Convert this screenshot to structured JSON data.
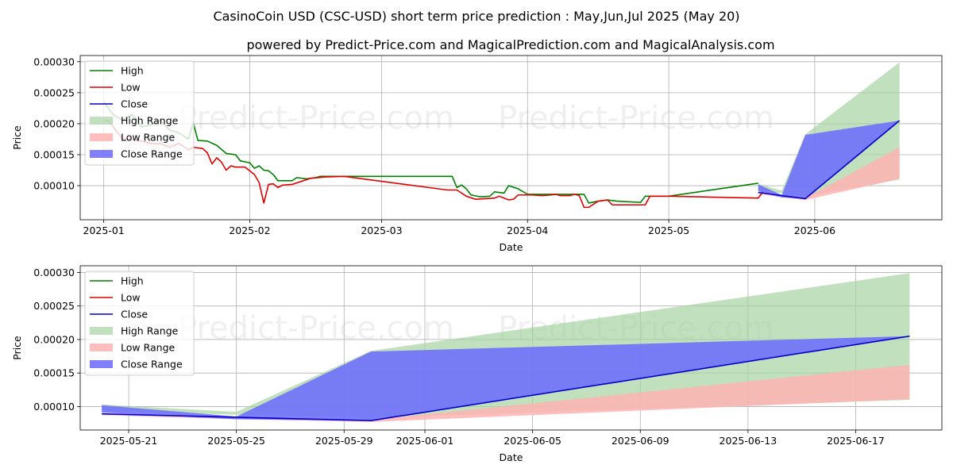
{
  "title": "CasinoCoin USD (CSC-USD) short term price prediction : May,Jun,Jul 2025 (May 20)",
  "subtitle": "powered by Predict-Price.com and MagicalPrediction.com and MagicalAnalysis.com",
  "watermark": "Predict-Price.com",
  "colors": {
    "high": "#008000",
    "low": "#e00000",
    "close": "#0000cc",
    "high_range": "#a7d3a1",
    "low_range": "#ffb3b3",
    "close_range": "#6a6aff"
  },
  "legend": {
    "high": "High",
    "low": "Low",
    "close": "Close",
    "high_range": "High Range",
    "low_range": "Low Range",
    "close_range": "Close Range"
  },
  "chart_data": [
    {
      "type": "line",
      "name": "overview",
      "xlabel": "Date",
      "ylabel": "Price",
      "xlim": [
        "2024-12-27",
        "2025-06-28"
      ],
      "ylim": [
        4.5e-05,
        0.00031
      ],
      "x_ticks": [
        "2025-01-01",
        "2025-02-01",
        "2025-03-01",
        "2025-04-01",
        "2025-05-01",
        "2025-06-01"
      ],
      "x_tick_labels": [
        "2025-01",
        "2025-02",
        "2025-03",
        "2025-04",
        "2025-05",
        "2025-06"
      ],
      "y_ticks": [
        0.0001,
        0.00015,
        0.0002,
        0.00025,
        0.0003
      ],
      "y_tick_labels": [
        "0.00010",
        "0.00015",
        "0.00020",
        "0.00025",
        "0.00030"
      ],
      "series": [
        {
          "name": "High",
          "points": [
            [
              "2025-01-01",
              0.000235
            ],
            [
              "2025-01-03",
              0.000215
            ],
            [
              "2025-01-05",
              0.000205
            ],
            [
              "2025-01-07",
              0.000215
            ],
            [
              "2025-01-09",
              0.000195
            ],
            [
              "2025-01-11",
              0.000198
            ],
            [
              "2025-01-13",
              0.000205
            ],
            [
              "2025-01-15",
              0.00019
            ],
            [
              "2025-01-17",
              0.000185
            ],
            [
              "2025-01-19",
              0.000175
            ],
            [
              "2025-01-20",
              0.000202
            ],
            [
              "2025-01-21",
              0.000173
            ],
            [
              "2025-01-23",
              0.000172
            ],
            [
              "2025-01-25",
              0.000165
            ],
            [
              "2025-01-27",
              0.000152
            ],
            [
              "2025-01-29",
              0.00015
            ],
            [
              "2025-01-30",
              0.00014
            ],
            [
              "2025-02-01",
              0.000137
            ],
            [
              "2025-02-02",
              0.000128
            ],
            [
              "2025-02-03",
              0.000132
            ],
            [
              "2025-02-04",
              0.000125
            ],
            [
              "2025-02-05",
              0.000124
            ],
            [
              "2025-02-06",
              0.000118
            ],
            [
              "2025-02-07",
              0.000108
            ],
            [
              "2025-02-10",
              0.000108
            ],
            [
              "2025-02-11",
              0.000113
            ],
            [
              "2025-02-13",
              0.000111
            ],
            [
              "2025-02-15",
              0.000113
            ],
            [
              "2025-02-16",
              0.000115
            ],
            [
              "2025-02-20",
              0.000115
            ],
            [
              "2025-03-16",
              0.000115
            ],
            [
              "2025-03-17",
              9.7e-05
            ],
            [
              "2025-03-18",
              0.000101
            ],
            [
              "2025-03-19",
              9.5e-05
            ],
            [
              "2025-03-20",
              8.5e-05
            ],
            [
              "2025-03-22",
              8.2e-05
            ],
            [
              "2025-03-24",
              8.3e-05
            ],
            [
              "2025-03-25",
              9e-05
            ],
            [
              "2025-03-27",
              8.8e-05
            ],
            [
              "2025-03-28",
              0.0001
            ],
            [
              "2025-03-30",
              9.5e-05
            ],
            [
              "2025-04-01",
              8.6e-05
            ],
            [
              "2025-04-04",
              8.6e-05
            ],
            [
              "2025-04-08",
              8.6e-05
            ],
            [
              "2025-04-13",
              8.6e-05
            ],
            [
              "2025-04-14",
              7.2e-05
            ],
            [
              "2025-04-16",
              7.5e-05
            ],
            [
              "2025-04-18",
              7.7e-05
            ],
            [
              "2025-04-20",
              7.5e-05
            ],
            [
              "2025-04-25",
              7.3e-05
            ],
            [
              "2025-04-26",
              8.3e-05
            ],
            [
              "2025-05-01",
              8.3e-05
            ],
            [
              "2025-05-20",
              0.000104
            ]
          ]
        },
        {
          "name": "Low",
          "points": [
            [
              "2025-01-01",
              0.000205
            ],
            [
              "2025-01-02",
              0.000205
            ],
            [
              "2025-01-03",
              0.000195
            ],
            [
              "2025-01-05",
              0.000175
            ],
            [
              "2025-01-07",
              0.000175
            ],
            [
              "2025-01-09",
              0.000172
            ],
            [
              "2025-01-11",
              0.000168
            ],
            [
              "2025-01-13",
              0.000168
            ],
            [
              "2025-01-15",
              0.000162
            ],
            [
              "2025-01-17",
              0.000168
            ],
            [
              "2025-01-19",
              0.000158
            ],
            [
              "2025-01-20",
              0.000162
            ],
            [
              "2025-01-22",
              0.00016
            ],
            [
              "2025-01-23",
              0.000153
            ],
            [
              "2025-01-24",
              0.000135
            ],
            [
              "2025-01-25",
              0.000145
            ],
            [
              "2025-01-26",
              0.000138
            ],
            [
              "2025-01-27",
              0.000125
            ],
            [
              "2025-01-28",
              0.000132
            ],
            [
              "2025-01-29",
              0.00013
            ],
            [
              "2025-01-31",
              0.00013
            ],
            [
              "2025-02-02",
              0.000118
            ],
            [
              "2025-02-03",
              0.000105
            ],
            [
              "2025-02-04",
              7.2e-05
            ],
            [
              "2025-02-05",
              0.000102
            ],
            [
              "2025-02-06",
              0.000103
            ],
            [
              "2025-02-07",
              9.7e-05
            ],
            [
              "2025-02-08",
              0.000101
            ],
            [
              "2025-02-10",
              0.000102
            ],
            [
              "2025-02-12",
              0.000107
            ],
            [
              "2025-02-14",
              0.000112
            ],
            [
              "2025-02-17",
              0.000114
            ],
            [
              "2025-02-21",
              0.000115
            ],
            [
              "2025-03-15",
              9.3e-05
            ],
            [
              "2025-03-17",
              9.3e-05
            ],
            [
              "2025-03-19",
              8.3e-05
            ],
            [
              "2025-03-21",
              7.8e-05
            ],
            [
              "2025-03-23",
              7.9e-05
            ],
            [
              "2025-03-25",
              8e-05
            ],
            [
              "2025-03-26",
              8.3e-05
            ],
            [
              "2025-03-27",
              8e-05
            ],
            [
              "2025-03-28",
              7.7e-05
            ],
            [
              "2025-03-29",
              7.8e-05
            ],
            [
              "2025-03-30",
              8.5e-05
            ],
            [
              "2025-04-02",
              8.5e-05
            ],
            [
              "2025-04-04",
              8.4e-05
            ],
            [
              "2025-04-06",
              8.5e-05
            ],
            [
              "2025-04-07",
              8.6e-05
            ],
            [
              "2025-04-08",
              8.4e-05
            ],
            [
              "2025-04-10",
              8.4e-05
            ],
            [
              "2025-04-11",
              8.6e-05
            ],
            [
              "2025-04-12",
              8.4e-05
            ],
            [
              "2025-04-13",
              6.5e-05
            ],
            [
              "2025-04-14",
              6.5e-05
            ],
            [
              "2025-04-16",
              7.5e-05
            ],
            [
              "2025-04-18",
              7.7e-05
            ],
            [
              "2025-04-19",
              6.9e-05
            ],
            [
              "2025-04-26",
              6.9e-05
            ],
            [
              "2025-04-27",
              8.3e-05
            ],
            [
              "2025-05-01",
              8.3e-05
            ],
            [
              "2025-05-20",
              8e-05
            ],
            [
              "2025-05-21",
              9e-05
            ]
          ]
        },
        {
          "name": "Close",
          "points": [
            [
              "2025-05-20",
              8.9e-05
            ],
            [
              "2025-05-25",
              8.4e-05
            ],
            [
              "2025-05-30",
              7.9e-05
            ],
            [
              "2025-06-19",
              0.000205
            ]
          ]
        }
      ],
      "ranges": [
        {
          "name": "High Range",
          "x": [
            "2025-05-20",
            "2025-05-25",
            "2025-05-30",
            "2025-06-19"
          ],
          "upper": [
            0.000103,
            9.2e-05,
            0.000183,
            0.000299
          ],
          "lower": [
            9.3e-05,
            8.8e-05,
            8.3e-05,
            0.00011
          ]
        },
        {
          "name": "Low Range",
          "x": [
            "2025-05-20",
            "2025-05-25",
            "2025-05-30",
            "2025-06-19"
          ],
          "upper": [
            9e-05,
            8.3e-05,
            8e-05,
            0.000162
          ],
          "lower": [
            8.7e-05,
            8.1e-05,
            7.7e-05,
            0.000111
          ]
        },
        {
          "name": "Close Range",
          "x": [
            "2025-05-20",
            "2025-05-25",
            "2025-05-30",
            "2025-06-19"
          ],
          "upper": [
            0.000102,
            8.5e-05,
            0.000182,
            0.000205
          ],
          "lower": [
            9.1e-05,
            8.1e-05,
            7.9e-05,
            0.000205
          ]
        }
      ]
    },
    {
      "type": "line",
      "name": "zoom",
      "xlabel": "Date",
      "ylabel": "Price",
      "xlim": [
        "2025-05-19.2",
        "2025-06-20.2"
      ],
      "ylim": [
        6.5e-05,
        0.00031
      ],
      "x_ticks": [
        "2025-05-21",
        "2025-05-25",
        "2025-05-29",
        "2025-06-01",
        "2025-06-05",
        "2025-06-09",
        "2025-06-13",
        "2025-06-17"
      ],
      "x_tick_labels": [
        "2025-05-21",
        "2025-05-25",
        "2025-05-29",
        "2025-06-01",
        "2025-06-05",
        "2025-06-09",
        "2025-06-13",
        "2025-06-17"
      ],
      "y_ticks": [
        0.0001,
        0.00015,
        0.0002,
        0.00025,
        0.0003
      ],
      "y_tick_labels": [
        "0.00010",
        "0.00015",
        "0.00020",
        "0.00025",
        "0.00030"
      ],
      "series": [
        {
          "name": "Close",
          "points": [
            [
              "2025-05-20",
              8.9e-05
            ],
            [
              "2025-05-25",
              8.4e-05
            ],
            [
              "2025-05-30",
              7.9e-05
            ],
            [
              "2025-06-19",
              0.000205
            ]
          ]
        }
      ],
      "ranges": [
        {
          "name": "High Range",
          "x": [
            "2025-05-20",
            "2025-05-25",
            "2025-05-30",
            "2025-06-19"
          ],
          "upper": [
            0.000103,
            9.2e-05,
            0.000183,
            0.000299
          ],
          "lower": [
            9.3e-05,
            8.8e-05,
            8.3e-05,
            0.00011
          ]
        },
        {
          "name": "Low Range",
          "x": [
            "2025-05-20",
            "2025-05-25",
            "2025-05-30",
            "2025-06-19"
          ],
          "upper": [
            9e-05,
            8.3e-05,
            8e-05,
            0.000162
          ],
          "lower": [
            8.7e-05,
            8.1e-05,
            7.7e-05,
            0.000111
          ]
        },
        {
          "name": "Close Range",
          "x": [
            "2025-05-20",
            "2025-05-25",
            "2025-05-30",
            "2025-06-19"
          ],
          "upper": [
            0.000102,
            8.5e-05,
            0.000182,
            0.000205
          ],
          "lower": [
            9.1e-05,
            8.1e-05,
            7.9e-05,
            0.000205
          ]
        }
      ]
    }
  ]
}
